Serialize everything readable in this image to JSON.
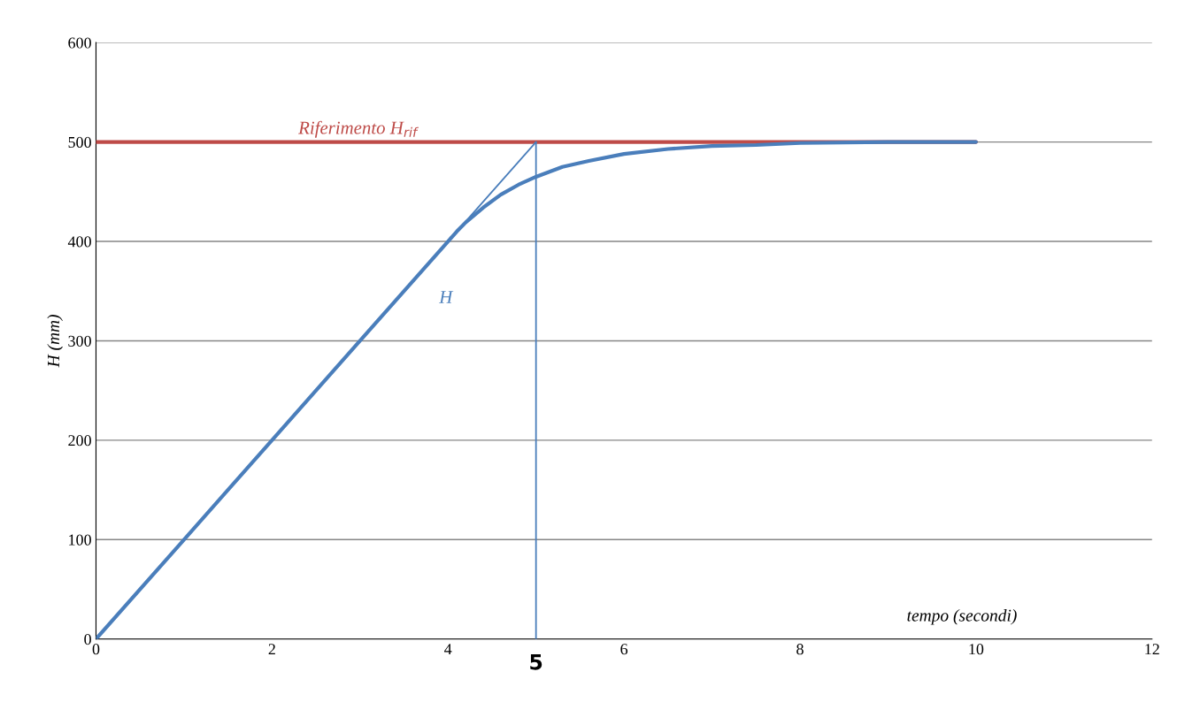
{
  "chart_data": {
    "type": "line",
    "xlabel": "tempo (secondi)",
    "ylabel": "H (mm)",
    "xlim": [
      0,
      12
    ],
    "xticks": [
      0,
      2,
      4,
      6,
      8,
      10,
      12
    ],
    "ylim": [
      0,
      600
    ],
    "yticks": [
      0,
      100,
      200,
      300,
      400,
      500,
      600
    ],
    "grid": "y",
    "legend": false,
    "series": [
      {
        "name": "Riferimento H$_{rif}$",
        "color": "#be4b48",
        "x": [
          0,
          10
        ],
        "values": [
          500,
          500
        ]
      },
      {
        "name": "H",
        "color": "#4a7ebb",
        "x": [
          0,
          1,
          2,
          3,
          4,
          4.1,
          4.2,
          4.4,
          4.6,
          4.8,
          5,
          5.3,
          5.6,
          6,
          6.5,
          7,
          7.5,
          8,
          9,
          10
        ],
        "values": [
          0,
          100,
          200,
          300,
          400,
          410,
          419,
          434,
          447,
          457,
          465,
          475,
          481,
          488,
          493,
          496,
          497,
          499,
          500,
          500
        ]
      },
      {
        "color": "#4a7ebb",
        "x": [
          4.2,
          5
        ],
        "values": [
          420,
          500
        ]
      },
      {
        "color": "#4a7ebb",
        "x": [
          5,
          5
        ],
        "values": [
          0,
          500
        ]
      }
    ],
    "annotations": [
      {
        "text": "5",
        "x": 5,
        "y": 0
      }
    ]
  }
}
